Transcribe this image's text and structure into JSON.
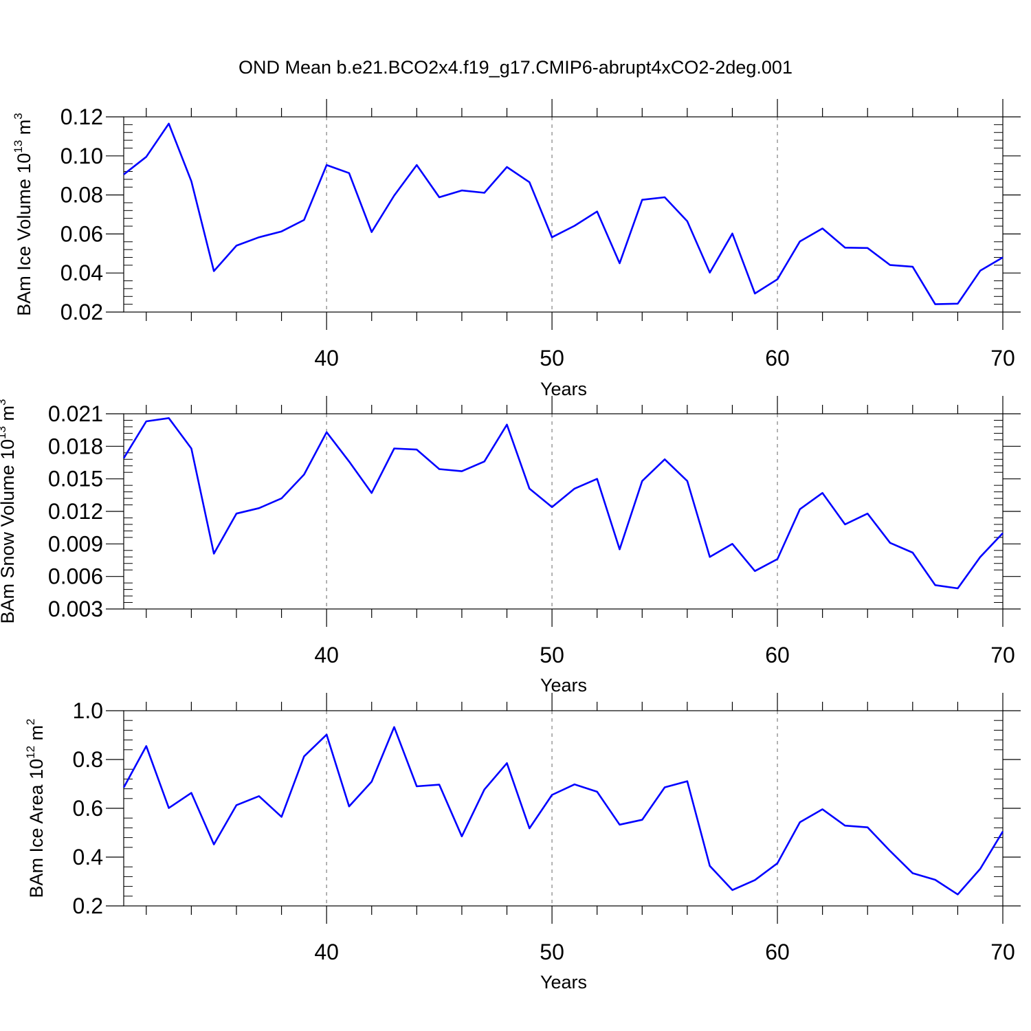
{
  "title": "OND Mean b.e21.BCO2x4.f19_g17.CMIP6-abrupt4xCO2-2deg.001",
  "colors": {
    "line": "#0000ff",
    "axis": "#000000",
    "grid": "#999999"
  },
  "chart_data": [
    {
      "type": "line",
      "xlabel": "Years",
      "ylabel": {
        "text": "BAm Ice Volume 10",
        "exp": "13",
        "unit": " m",
        "unit_exp": "3"
      },
      "xlim": [
        31,
        70
      ],
      "ylim": [
        0.02,
        0.12
      ],
      "xticks": [
        40,
        50,
        60,
        70
      ],
      "xtick_labels": [
        "40",
        "50",
        "60",
        "70"
      ],
      "yticks": [
        0.02,
        0.04,
        0.06,
        0.08,
        0.1,
        0.12
      ],
      "ytick_labels": [
        "0.02",
        "0.04",
        "0.06",
        "0.08",
        "0.10",
        "0.12"
      ],
      "grid": "vertical dashed at x ticks",
      "x": [
        31,
        32,
        33,
        34,
        35,
        36,
        37,
        38,
        39,
        40,
        41,
        42,
        43,
        44,
        45,
        46,
        47,
        48,
        49,
        50,
        51,
        52,
        53,
        54,
        55,
        56,
        57,
        58,
        59,
        60,
        61,
        62,
        63,
        64,
        65,
        66,
        67,
        68,
        69,
        70
      ],
      "values": [
        0.0905,
        0.0995,
        0.1165,
        0.087,
        0.041,
        0.054,
        0.0583,
        0.0613,
        0.0672,
        0.0953,
        0.0912,
        0.061,
        0.0797,
        0.0953,
        0.0788,
        0.0823,
        0.0811,
        0.0943,
        0.0865,
        0.0583,
        0.0642,
        0.0715,
        0.045,
        0.0775,
        0.0788,
        0.0665,
        0.0402,
        0.0602,
        0.0295,
        0.0368,
        0.0562,
        0.0628,
        0.053,
        0.0528,
        0.0441,
        0.0432,
        0.024,
        0.0243,
        0.0412,
        0.048
      ]
    },
    {
      "type": "line",
      "xlabel": "Years",
      "ylabel": {
        "text": "BAm Snow Volume 10",
        "exp": "13",
        "unit": " m",
        "unit_exp": "3"
      },
      "xlim": [
        31,
        70
      ],
      "ylim": [
        0.003,
        0.021
      ],
      "xticks": [
        40,
        50,
        60,
        70
      ],
      "xtick_labels": [
        "40",
        "50",
        "60",
        "70"
      ],
      "yticks": [
        0.003,
        0.006,
        0.009,
        0.012,
        0.015,
        0.018,
        0.021
      ],
      "ytick_labels": [
        "0.003",
        "0.006",
        "0.009",
        "0.012",
        "0.015",
        "0.018",
        "0.021"
      ],
      "grid": "vertical dashed at x ticks",
      "x": [
        31,
        32,
        33,
        34,
        35,
        36,
        37,
        38,
        39,
        40,
        41,
        42,
        43,
        44,
        45,
        46,
        47,
        48,
        49,
        50,
        51,
        52,
        53,
        54,
        55,
        56,
        57,
        58,
        59,
        60,
        61,
        62,
        63,
        64,
        65,
        66,
        67,
        68,
        69,
        70
      ],
      "values": [
        0.0169,
        0.0203,
        0.0206,
        0.0178,
        0.0081,
        0.0118,
        0.0123,
        0.0132,
        0.0154,
        0.0193,
        0.0166,
        0.0137,
        0.0178,
        0.0177,
        0.0159,
        0.0157,
        0.0166,
        0.02,
        0.0141,
        0.0124,
        0.0141,
        0.015,
        0.0085,
        0.0148,
        0.0168,
        0.0148,
        0.0078,
        0.009,
        0.0065,
        0.0076,
        0.0122,
        0.0137,
        0.0108,
        0.0118,
        0.0091,
        0.0082,
        0.0052,
        0.0049,
        0.0078,
        0.01
      ]
    },
    {
      "type": "line",
      "xlabel": "Years",
      "ylabel": {
        "text": "BAm Ice Area 10",
        "exp": "12",
        "unit": " m",
        "unit_exp": "2"
      },
      "xlim": [
        31,
        70
      ],
      "ylim": [
        0.2,
        1.0
      ],
      "xticks": [
        40,
        50,
        60,
        70
      ],
      "xtick_labels": [
        "40",
        "50",
        "60",
        "70"
      ],
      "yticks": [
        0.2,
        0.4,
        0.6,
        0.8,
        1.0
      ],
      "ytick_labels": [
        "0.2",
        "0.4",
        "0.6",
        "0.8",
        "1.0"
      ],
      "grid": "vertical dashed at x ticks",
      "x": [
        31,
        32,
        33,
        34,
        35,
        36,
        37,
        38,
        39,
        40,
        41,
        42,
        43,
        44,
        45,
        46,
        47,
        48,
        49,
        50,
        51,
        52,
        53,
        54,
        55,
        56,
        57,
        58,
        59,
        60,
        61,
        62,
        63,
        64,
        65,
        66,
        67,
        68,
        69,
        70
      ],
      "values": [
        0.685,
        0.855,
        0.601,
        0.663,
        0.452,
        0.613,
        0.65,
        0.565,
        0.813,
        0.902,
        0.608,
        0.709,
        0.933,
        0.69,
        0.697,
        0.485,
        0.677,
        0.785,
        0.518,
        0.655,
        0.698,
        0.668,
        0.533,
        0.553,
        0.686,
        0.711,
        0.364,
        0.265,
        0.306,
        0.375,
        0.543,
        0.596,
        0.529,
        0.522,
        0.425,
        0.334,
        0.307,
        0.247,
        0.352,
        0.505
      ]
    }
  ]
}
